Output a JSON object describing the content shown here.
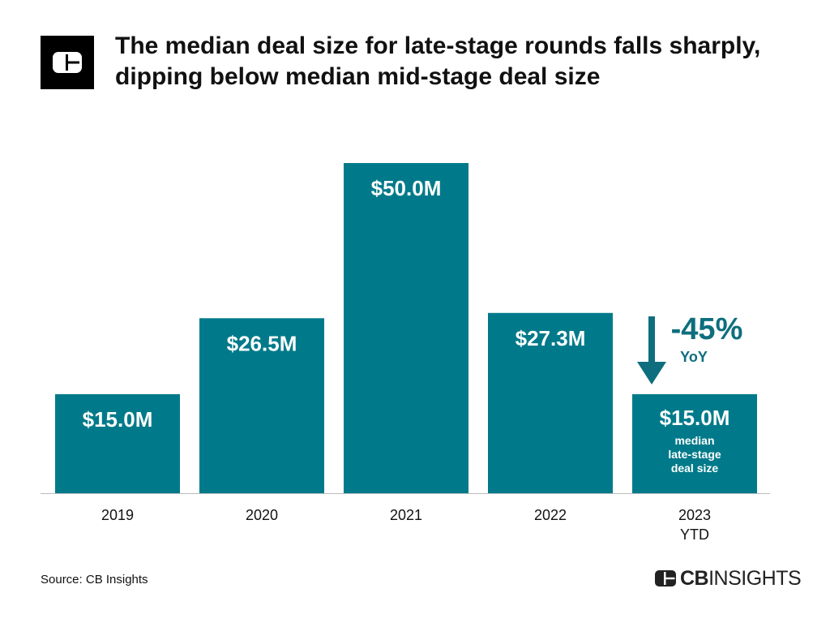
{
  "header": {
    "title": "The median deal size for late-stage rounds falls sharply, dipping below median mid-stage deal size",
    "logo_icon": "cb-insights-logo-icon"
  },
  "chart_data": {
    "type": "bar",
    "categories": [
      "2019",
      "2020",
      "2021",
      "2022",
      "2023 YTD"
    ],
    "category_lines": [
      [
        "2019"
      ],
      [
        "2020"
      ],
      [
        "2021"
      ],
      [
        "2022"
      ],
      [
        "2023",
        "YTD"
      ]
    ],
    "values": [
      15.0,
      26.5,
      50.0,
      27.3,
      15.0
    ],
    "data_labels": [
      "$15.0M",
      "$26.5M",
      "$50.0M",
      "$27.3M",
      "$15.0M"
    ],
    "unit": "$M",
    "ylim": [
      0,
      50
    ],
    "grid": false,
    "bar_color": "#007A8A",
    "annotations": {
      "change": "-45%",
      "change_sub": "YoY",
      "change_color": "#0E6E7E",
      "arrow_icon": "down-arrow-icon",
      "last_bar_note": [
        "median",
        "late-stage",
        "deal size"
      ]
    }
  },
  "footer": {
    "source": "Source: CB Insights",
    "brand_bold": "CB",
    "brand_light": "INSIGHTS"
  }
}
